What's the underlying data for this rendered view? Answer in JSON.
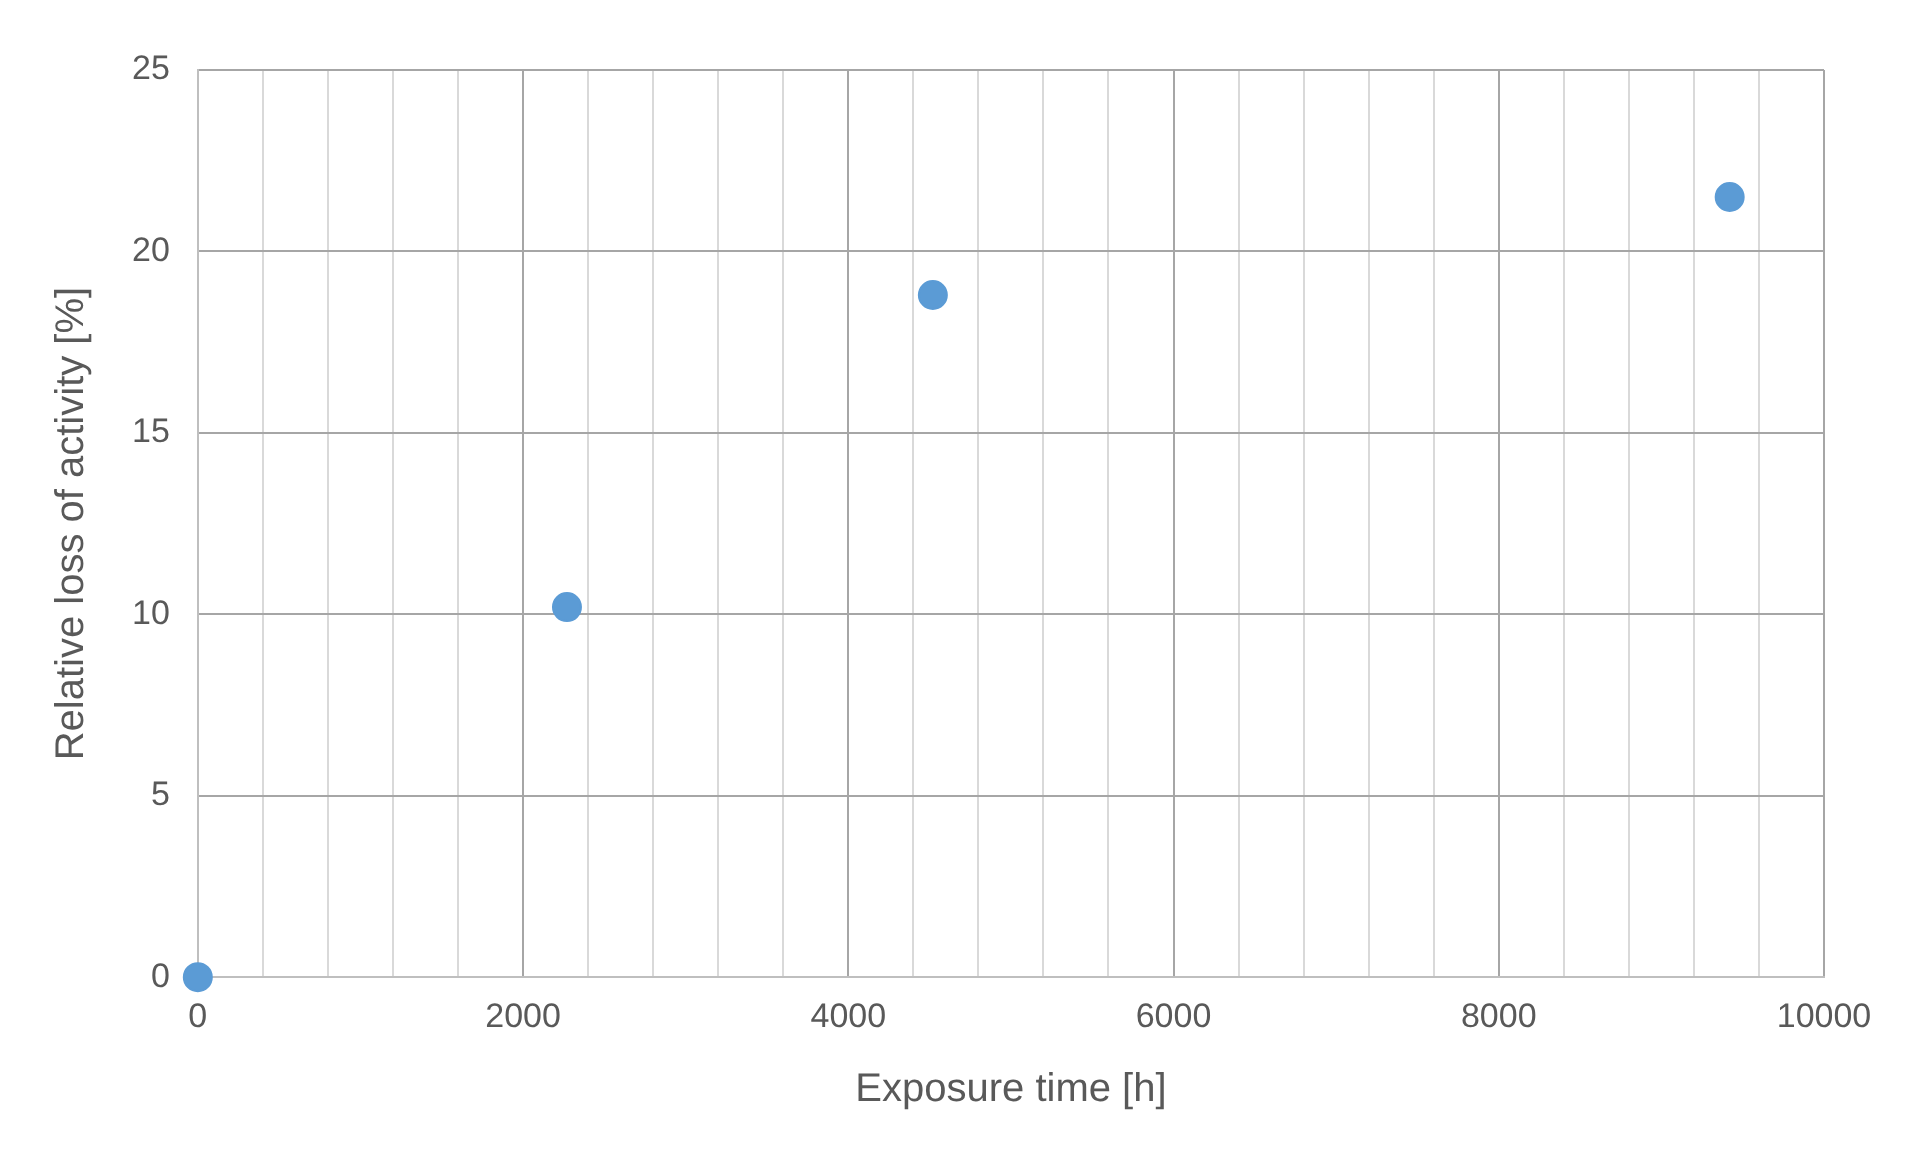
{
  "chart_data": {
    "type": "scatter",
    "xlabel": "Exposure time [h]",
    "ylabel": "Relative loss of activity [%]",
    "x": [
      0,
      2270,
      4520,
      9420
    ],
    "series": [
      {
        "color": "#5b9bd5",
        "values": [
          0,
          10.2,
          18.8,
          21.5
        ]
      }
    ],
    "xlim": [
      0,
      10000
    ],
    "xticks": [
      0,
      {
        "value": 400,
        "label": null
      },
      {
        "value": 800,
        "label": null
      },
      {
        "value": 1200,
        "label": null
      },
      {
        "value": 1600,
        "label": null
      },
      2000,
      {
        "value": 2400,
        "label": null
      },
      {
        "value": 2800,
        "label": null
      },
      {
        "value": 3200,
        "label": null
      },
      {
        "value": 3600,
        "label": null
      },
      4000,
      {
        "value": 4400,
        "label": null
      },
      {
        "value": 4800,
        "label": null
      },
      {
        "value": 5200,
        "label": null
      },
      {
        "value": 5600,
        "label": null
      },
      6000,
      {
        "value": 6400,
        "label": null
      },
      {
        "value": 6800,
        "label": null
      },
      {
        "value": 7200,
        "label": null
      },
      {
        "value": 7600,
        "label": null
      },
      8000,
      {
        "value": 8400,
        "label": null
      },
      {
        "value": 8800,
        "label": null
      },
      {
        "value": 9200,
        "label": null
      },
      {
        "value": 9600,
        "label": null
      },
      10000
    ],
    "ylim": [
      0,
      25
    ],
    "yticks": [
      0,
      5,
      10,
      15,
      20,
      25
    ],
    "grid": true,
    "legend": false,
    "marker": "circle"
  }
}
